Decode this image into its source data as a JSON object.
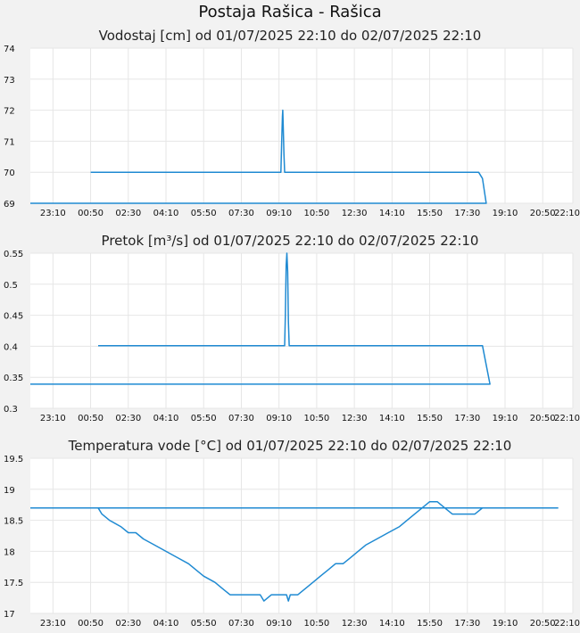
{
  "page": {
    "title": "Postaja Rašica - Rašica"
  },
  "chart_data": [
    {
      "type": "line",
      "title": "Vodostaj [cm] od 01/07/2025 22:10 do 02/07/2025 22:10",
      "xlabel": "",
      "ylabel": "",
      "x_range": [
        "22:10",
        "22:10 (+1 day)"
      ],
      "x_ticks": [
        "23:10",
        "00:50",
        "02:30",
        "04:10",
        "05:50",
        "07:30",
        "09:10",
        "10:50",
        "12:30",
        "14:10",
        "15:50",
        "17:30",
        "19:10",
        "20:50",
        "22:10"
      ],
      "y_ticks": [
        "69",
        "70",
        "71",
        "72",
        "73",
        "74"
      ],
      "ylim": [
        69,
        74
      ],
      "grid": true,
      "color": "#1f8ad2",
      "series": [
        {
          "x": [
            "00:50",
            "09:15",
            "09:17",
            "09:19",
            "09:20",
            "09:21",
            "09:23",
            "09:25",
            "18:00",
            "18:10",
            "18:20",
            "22:10"
          ],
          "values": [
            70,
            70,
            70.9,
            71.8,
            72.0,
            71.6,
            70.6,
            70,
            70,
            69.8,
            69,
            69
          ]
        }
      ]
    },
    {
      "type": "line",
      "title": "Pretok [m³/s] od 01/07/2025 22:10 do 02/07/2025 22:10",
      "xlabel": "",
      "ylabel": "",
      "x_range": [
        "22:10",
        "22:10 (+1 day)"
      ],
      "x_ticks": [
        "23:10",
        "00:50",
        "02:30",
        "04:10",
        "05:50",
        "07:30",
        "09:10",
        "10:50",
        "12:30",
        "14:10",
        "15:50",
        "17:30",
        "19:10",
        "20:50",
        "22:10"
      ],
      "y_ticks": [
        "0.3",
        "0.35",
        "0.4",
        "0.45",
        "0.5",
        "0.55"
      ],
      "ylim": [
        0.3,
        0.55
      ],
      "grid": true,
      "color": "#1f8ad2",
      "series": [
        {
          "x": [
            "01:10",
            "09:25",
            "09:27",
            "09:29",
            "09:31",
            "09:33",
            "09:35",
            "09:37",
            "18:10",
            "18:20",
            "18:30",
            "22:10"
          ],
          "values": [
            0.401,
            0.401,
            0.45,
            0.53,
            0.55,
            0.52,
            0.44,
            0.401,
            0.401,
            0.37,
            0.339,
            0.339
          ]
        }
      ]
    },
    {
      "type": "line",
      "title": "Temperatura vode [°C] od 01/07/2025 22:10 do 02/07/2025 22:10",
      "xlabel": "",
      "ylabel": "",
      "x_range": [
        "22:10",
        "22:10 (+1 day)"
      ],
      "x_ticks": [
        "23:10",
        "00:50",
        "02:30",
        "04:10",
        "05:50",
        "07:30",
        "09:10",
        "10:50",
        "12:30",
        "14:10",
        "15:50",
        "17:30",
        "19:10",
        "20:50",
        "22:10"
      ],
      "y_ticks": [
        "17",
        "17.5",
        "18",
        "18.5",
        "19",
        "19.5"
      ],
      "ylim": [
        17,
        19.5
      ],
      "grid": true,
      "color": "#1f8ad2",
      "series": [
        {
          "x": [
            "01:10",
            "01:20",
            "01:40",
            "02:10",
            "02:30",
            "02:50",
            "03:10",
            "03:40",
            "04:10",
            "04:40",
            "05:10",
            "05:30",
            "05:50",
            "06:20",
            "06:40",
            "07:00",
            "07:30",
            "08:00",
            "08:20",
            "08:30",
            "08:50",
            "09:10",
            "09:30",
            "09:35",
            "09:40",
            "10:00",
            "10:20",
            "10:40",
            "11:00",
            "11:20",
            "11:40",
            "12:00",
            "12:20",
            "12:40",
            "13:00",
            "13:30",
            "14:00",
            "14:30",
            "14:50",
            "15:10",
            "15:30",
            "15:50",
            "16:10",
            "16:30",
            "16:50",
            "17:10",
            "17:30",
            "17:50",
            "18:10",
            "18:40",
            "19:10",
            "19:30",
            "20:00",
            "20:30",
            "21:00",
            "21:30",
            "22:10"
          ],
          "values": [
            18.7,
            18.6,
            18.5,
            18.4,
            18.3,
            18.3,
            18.2,
            18.1,
            18.0,
            17.9,
            17.8,
            17.7,
            17.6,
            17.5,
            17.4,
            17.3,
            17.3,
            17.3,
            17.3,
            17.2,
            17.3,
            17.3,
            17.3,
            17.2,
            17.3,
            17.3,
            17.4,
            17.5,
            17.6,
            17.7,
            17.8,
            17.8,
            17.9,
            18.0,
            18.1,
            18.2,
            18.3,
            18.4,
            18.5,
            18.6,
            18.7,
            18.8,
            18.8,
            18.7,
            18.6,
            18.6,
            18.6,
            18.6,
            18.7,
            18.7,
            18.7,
            18.7,
            18.7,
            18.7,
            18.7,
            18.7,
            18.7
          ]
        }
      ]
    }
  ]
}
